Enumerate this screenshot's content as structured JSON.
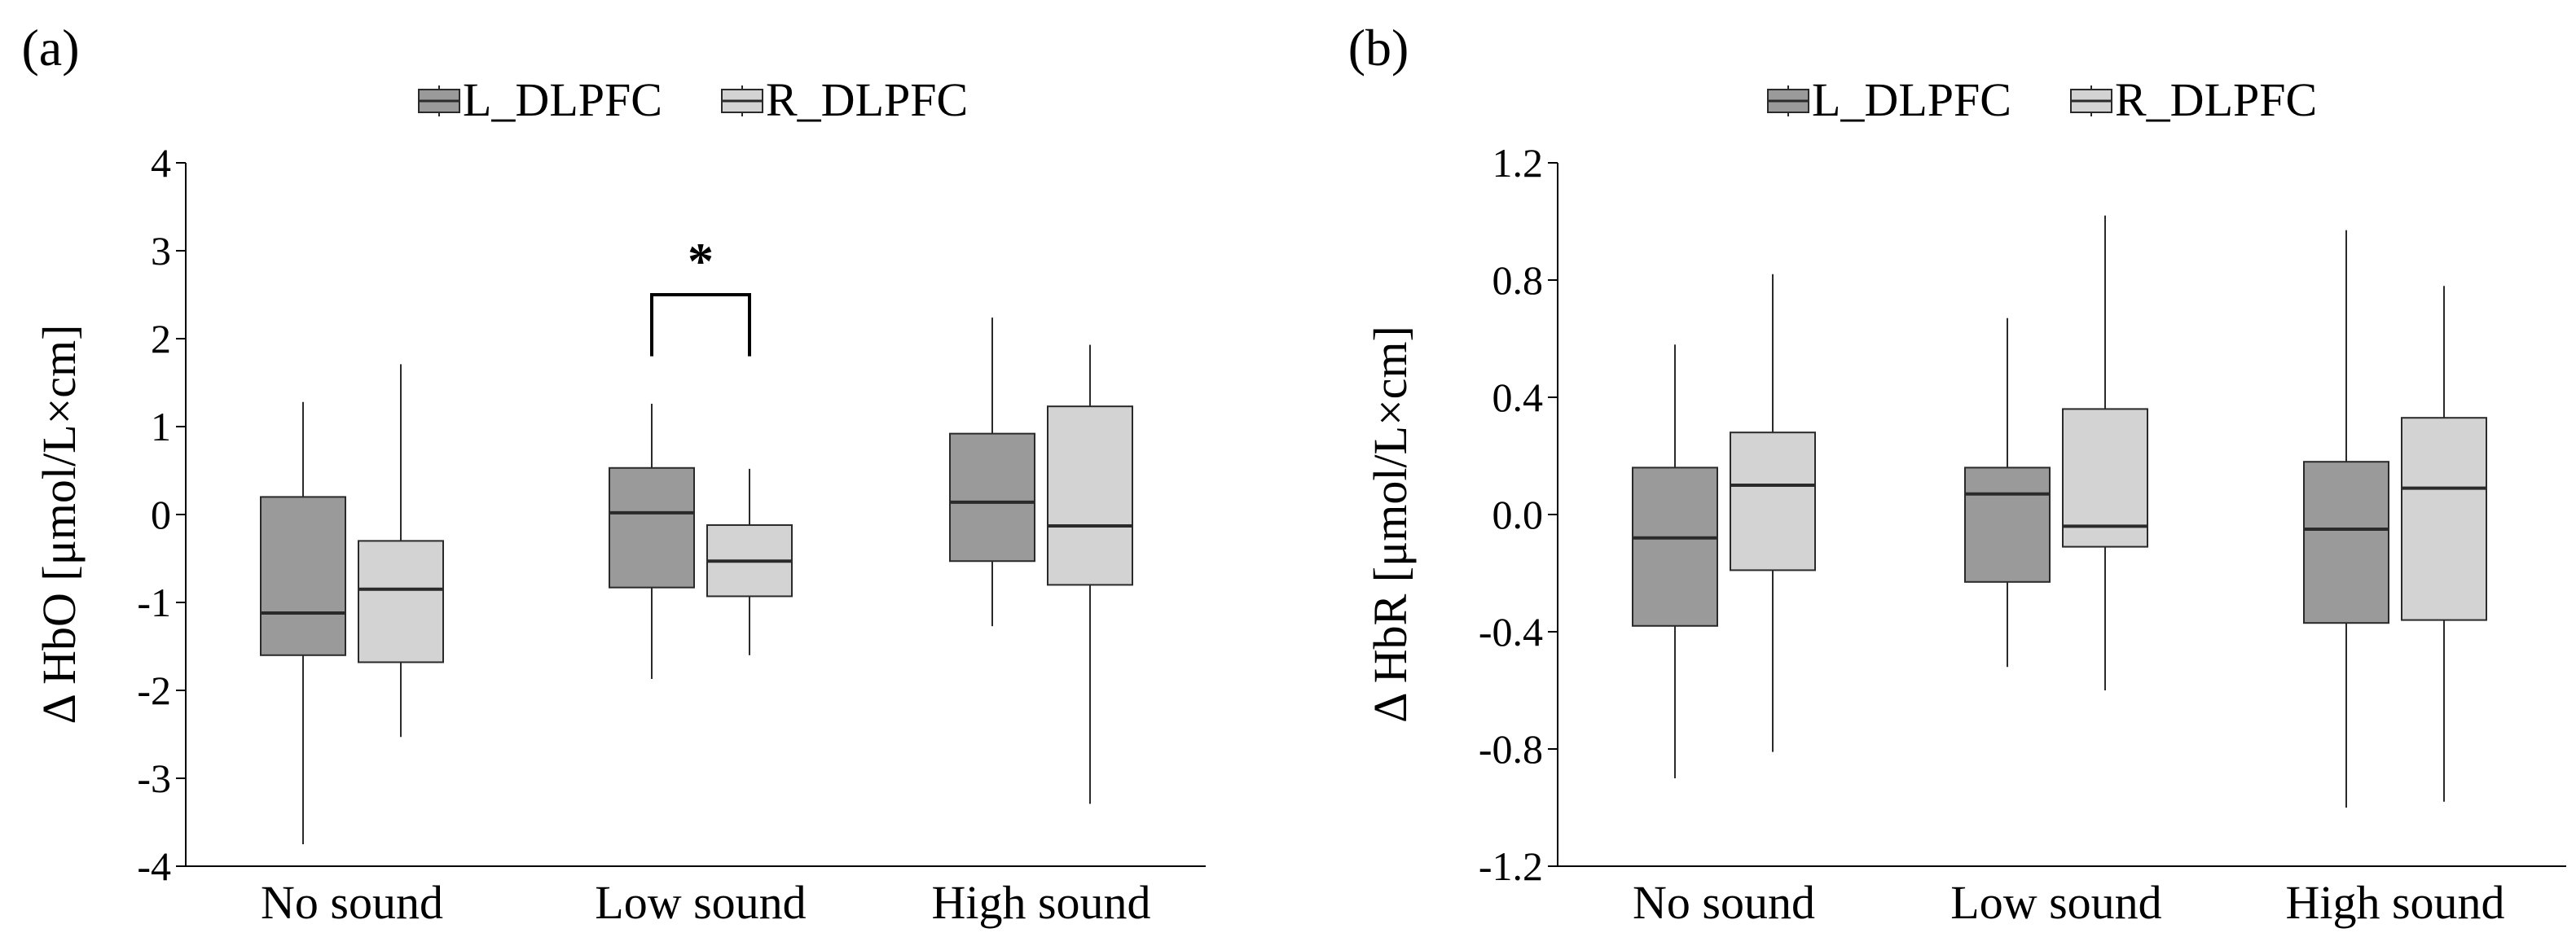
{
  "chart_data": [
    {
      "panel_label": "(a)",
      "type": "box",
      "xlabel": "",
      "ylabel": "Δ HbO [μmol/L×cm]",
      "ylim": [
        -4,
        4
      ],
      "y_ticks": [
        4,
        3,
        2,
        1,
        0,
        -1,
        -2,
        -3,
        -4
      ],
      "y_tick_labels": [
        "4",
        "3",
        "2",
        "1",
        "0",
        "-1",
        "-2",
        "-3",
        "-4"
      ],
      "categories": [
        "No sound",
        "Low sound",
        "High sound"
      ],
      "legend": [
        "L_DLPFC",
        "R_DLPFC"
      ],
      "series": [
        {
          "name": "L_DLPFC",
          "color": "#9a9a9a",
          "boxes": [
            {
              "min": -3.75,
              "q1": -1.6,
              "median": -1.12,
              "q3": 0.2,
              "max": 1.28
            },
            {
              "min": -1.87,
              "q1": -0.83,
              "median": 0.02,
              "q3": 0.53,
              "max": 1.26
            },
            {
              "min": -1.27,
              "q1": -0.53,
              "median": 0.14,
              "q3": 0.92,
              "max": 2.24
            }
          ]
        },
        {
          "name": "R_DLPFC",
          "color": "#d3d3d3",
          "boxes": [
            {
              "min": -2.53,
              "q1": -1.68,
              "median": -0.85,
              "q3": -0.3,
              "max": 1.71
            },
            {
              "min": -1.6,
              "q1": -0.93,
              "median": -0.53,
              "q3": -0.12,
              "max": 0.52
            },
            {
              "min": -3.29,
              "q1": -0.8,
              "median": -0.13,
              "q3": 1.23,
              "max": 1.93
            }
          ]
        }
      ],
      "annotation": {
        "text": "*",
        "category_index": 1,
        "y_base": 1.8,
        "y_top": 2.5
      }
    },
    {
      "panel_label": "(b)",
      "type": "box",
      "xlabel": "",
      "ylabel": "Δ HbR [μmol/L×cm]",
      "ylim": [
        -1.2,
        1.2
      ],
      "y_ticks": [
        1.2,
        0.8,
        0.4,
        0.0,
        -0.4,
        -0.8,
        -1.2
      ],
      "y_tick_labels": [
        "1.2",
        "0.8",
        "0.4",
        "0.0",
        "-0.4",
        "-0.8",
        "-1.2"
      ],
      "categories": [
        "No sound",
        "Low sound",
        "High sound"
      ],
      "legend": [
        "L_DLPFC",
        "R_DLPFC"
      ],
      "series": [
        {
          "name": "L_DLPFC",
          "color": "#9a9a9a",
          "boxes": [
            {
              "min": -0.9,
              "q1": -0.38,
              "median": -0.08,
              "q3": 0.16,
              "max": 0.58
            },
            {
              "min": -0.52,
              "q1": -0.23,
              "median": 0.07,
              "q3": 0.16,
              "max": 0.67
            },
            {
              "min": -1.0,
              "q1": -0.37,
              "median": -0.05,
              "q3": 0.18,
              "max": 0.97
            }
          ]
        },
        {
          "name": "R_DLPFC",
          "color": "#d3d3d3",
          "boxes": [
            {
              "min": -0.81,
              "q1": -0.19,
              "median": 0.1,
              "q3": 0.28,
              "max": 0.82
            },
            {
              "min": -0.6,
              "q1": -0.11,
              "median": -0.04,
              "q3": 0.36,
              "max": 1.02
            },
            {
              "min": -0.98,
              "q1": -0.36,
              "median": 0.09,
              "q3": 0.33,
              "max": 0.78
            }
          ]
        }
      ]
    }
  ]
}
